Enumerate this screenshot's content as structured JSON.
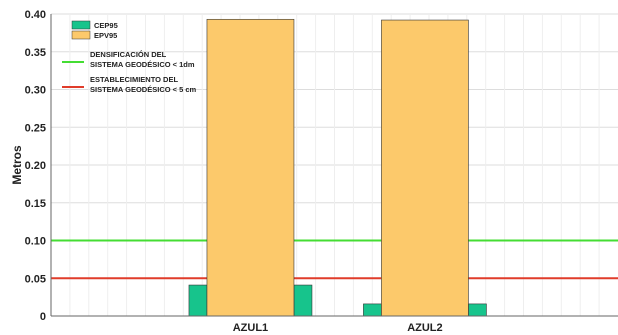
{
  "chart_data": {
    "type": "bar",
    "ylabel": "Metros",
    "xlabel": "",
    "ylim": [
      0,
      0.4
    ],
    "yticks": [
      "0",
      "0.05",
      "0.10",
      "0.15",
      "0.20",
      "0.25",
      "0.30",
      "0.35",
      "0.40"
    ],
    "grid": true,
    "legend_position": "top-left",
    "categories": [
      "AZUL1",
      "AZUL2"
    ],
    "series": [
      {
        "name": "CEP95",
        "color": "#17c48c",
        "values": [
          0.041,
          0.016
        ]
      },
      {
        "name": "EPV95",
        "color": "#fcc96b",
        "values": [
          0.393,
          0.392
        ]
      }
    ],
    "reference_lines": [
      {
        "name": "DENSIFICACIÓN DEL SISTEMA GEODÉSICO < 1dm",
        "lines": [
          "DENSIFICACIÓN DEL",
          "SISTEMA GEODÉSICO < 1dm"
        ],
        "value": 0.1,
        "color": "#44dd33"
      },
      {
        "name": "ESTABLECIMIENTO DEL SISTEMA GEODÉSICO < 5 cm",
        "lines": [
          "ESTABLECIMIENTO DEL",
          "SISTEMA GEODÉSICO < 5 cm"
        ],
        "value": 0.05,
        "color": "#e03c2a"
      }
    ]
  }
}
